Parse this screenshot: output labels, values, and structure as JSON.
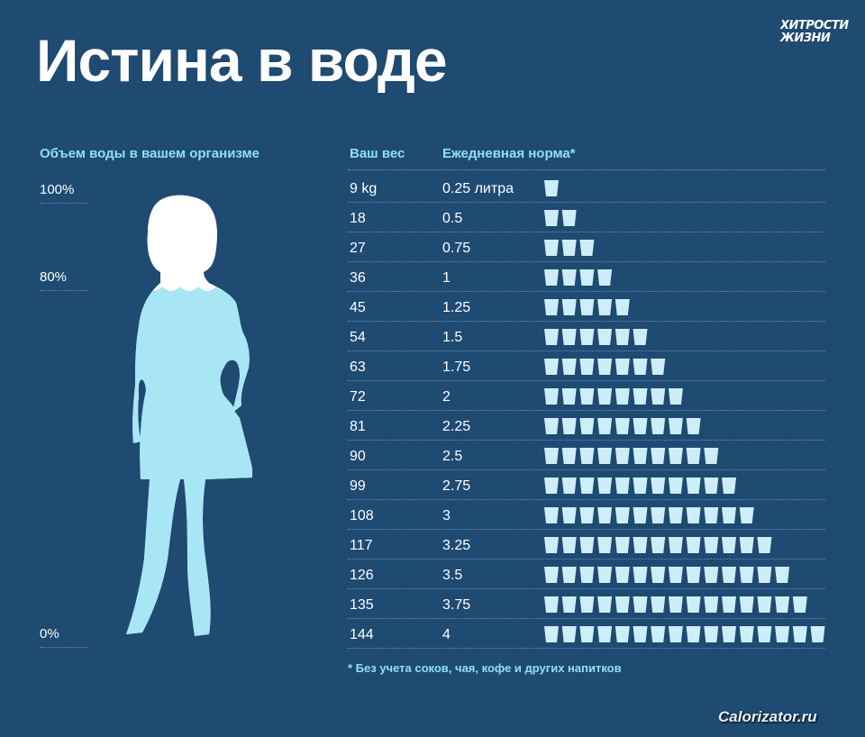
{
  "title": "Истина в воде",
  "logo": {
    "line1": "ХИТРОСТИ",
    "line2": "ЖИЗНИ"
  },
  "left": {
    "header": "Объем воды в вашем организме",
    "levels": [
      {
        "label": "100%",
        "value": 100
      },
      {
        "label": "80%",
        "value": 80
      },
      {
        "label": "0%",
        "value": 0
      }
    ]
  },
  "table": {
    "weight_header": "Ваш вес",
    "norm_header": "Ежедневная норма*",
    "rows": [
      {
        "weight": "9 kg",
        "norm": "0.25 литра",
        "cups": 1
      },
      {
        "weight": "18",
        "norm": "0.5",
        "cups": 2
      },
      {
        "weight": "27",
        "norm": "0.75",
        "cups": 3
      },
      {
        "weight": "36",
        "norm": "1",
        "cups": 4
      },
      {
        "weight": "45",
        "norm": "1.25",
        "cups": 5
      },
      {
        "weight": "54",
        "norm": "1.5",
        "cups": 6
      },
      {
        "weight": "63",
        "norm": "1.75",
        "cups": 7
      },
      {
        "weight": "72",
        "norm": "2",
        "cups": 8
      },
      {
        "weight": "81",
        "norm": "2.25",
        "cups": 9
      },
      {
        "weight": "90",
        "norm": "2.5",
        "cups": 10
      },
      {
        "weight": "99",
        "norm": "2.75",
        "cups": 11
      },
      {
        "weight": "108",
        "norm": "3",
        "cups": 12
      },
      {
        "weight": "117",
        "norm": "3.25",
        "cups": 13
      },
      {
        "weight": "126",
        "norm": "3.5",
        "cups": 14
      },
      {
        "weight": "135",
        "norm": "3.75",
        "cups": 15
      },
      {
        "weight": "144",
        "norm": "4",
        "cups": 16
      }
    ]
  },
  "footnote": "* Без учета соков, чая, кофе и других напитков",
  "watermark": "Calorizator.ru",
  "colors": {
    "background": "#1f4a72",
    "accent": "#8fe0f2",
    "cup": "#cdeef8",
    "silhouette_water": "#a8e6f6"
  }
}
